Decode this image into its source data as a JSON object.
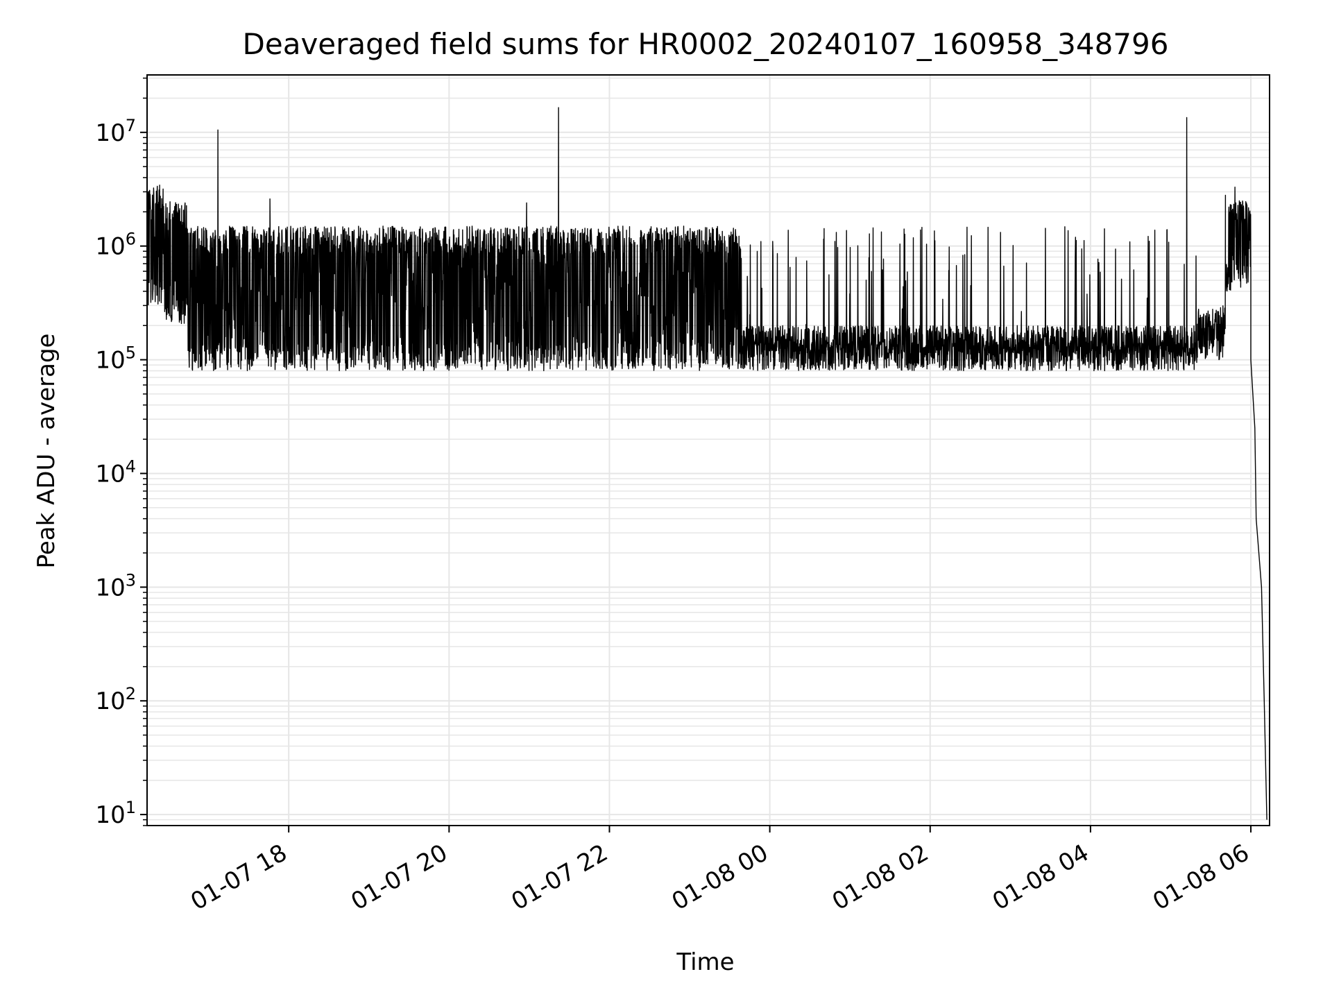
{
  "chart_data": {
    "type": "line",
    "title": "Deaveraged field sums for HR0002_20240107_160958_348796",
    "xlabel": "Time",
    "ylabel": "Peak ADU - average",
    "yscale": "log",
    "ylim": [
      8,
      32000000
    ],
    "xlim": [
      "2024-01-07 16:14",
      "2024-01-08 06:14"
    ],
    "grid": true,
    "line_color": "#000000",
    "grid_color": "#e6e6e6",
    "x_ticks": [
      {
        "value": "2024-01-07 18:00",
        "label": "01-07 18"
      },
      {
        "value": "2024-01-07 20:00",
        "label": "01-07 20"
      },
      {
        "value": "2024-01-07 22:00",
        "label": "01-07 22"
      },
      {
        "value": "2024-01-08 00:00",
        "label": "01-08 00"
      },
      {
        "value": "2024-01-08 02:00",
        "label": "01-08 02"
      },
      {
        "value": "2024-01-08 04:00",
        "label": "01-08 04"
      },
      {
        "value": "2024-01-08 06:00",
        "label": "01-08 06"
      }
    ],
    "y_ticks": [
      {
        "value": 10,
        "base": "10",
        "exp": "1"
      },
      {
        "value": 100,
        "base": "10",
        "exp": "2"
      },
      {
        "value": 1000,
        "base": "10",
        "exp": "3"
      },
      {
        "value": 10000,
        "base": "10",
        "exp": "4"
      },
      {
        "value": 100000,
        "base": "10",
        "exp": "5"
      },
      {
        "value": 1000000,
        "base": "10",
        "exp": "6"
      },
      {
        "value": 10000000,
        "base": "10",
        "exp": "7"
      }
    ],
    "segments": [
      {
        "start": "2024-01-07 16:14",
        "end": "2024-01-07 16:26",
        "low": 300000,
        "high": 3500000
      },
      {
        "start": "2024-01-07 16:26",
        "end": "2024-01-07 16:44",
        "low": 200000,
        "high": 2500000
      },
      {
        "start": "2024-01-07 16:44",
        "end": "2024-01-07 23:39",
        "low": 80000,
        "high": 1500000
      },
      {
        "start": "2024-01-07 23:39",
        "end": "2024-01-08 05:20",
        "low": 80000,
        "high": 200000
      },
      {
        "start": "2024-01-08 05:20",
        "end": "2024-01-08 05:41",
        "low": 100000,
        "high": 300000
      },
      {
        "start": "2024-01-08 05:41",
        "end": "2024-01-08 06:00",
        "low": 400000,
        "high": 2500000
      }
    ],
    "spikes": [
      {
        "time": "2024-01-07 17:07",
        "value": 10500000
      },
      {
        "time": "2024-01-07 17:46",
        "value": 2600000
      },
      {
        "time": "2024-01-07 20:58",
        "value": 2400000
      },
      {
        "time": "2024-01-07 21:22",
        "value": 16500000
      },
      {
        "time": "2024-01-08 05:12",
        "value": 13500000
      },
      {
        "time": "2024-01-08 05:41",
        "value": 2800000
      },
      {
        "time": "2024-01-08 05:48",
        "value": 3300000
      }
    ],
    "tail": [
      {
        "time": "2024-01-08 06:00",
        "value": 100000
      },
      {
        "time": "2024-01-08 06:03",
        "value": 25000
      },
      {
        "time": "2024-01-08 06:04",
        "value": 4000
      },
      {
        "time": "2024-01-08 06:08",
        "value": 1000
      },
      {
        "time": "2024-01-08 06:10",
        "value": 100
      },
      {
        "time": "2024-01-08 06:12",
        "value": 9
      }
    ]
  }
}
